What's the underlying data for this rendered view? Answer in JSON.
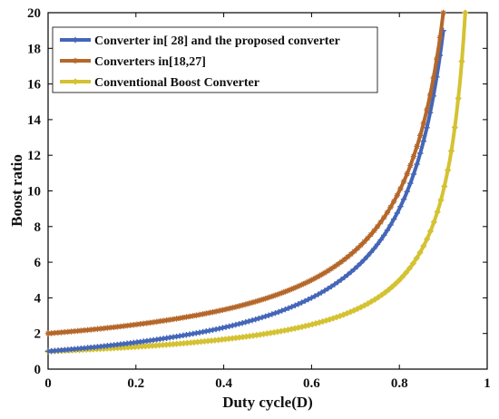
{
  "chart_data": {
    "type": "line",
    "title": "",
    "xlabel": "Duty cycle(D)",
    "ylabel": "Boost ratio",
    "xlim": [
      0,
      1
    ],
    "ylim": [
      0,
      20
    ],
    "xticks": [
      "0",
      "0.2",
      "0.4",
      "0.6",
      "0.8",
      "1"
    ],
    "yticks": [
      "0",
      "2",
      "4",
      "6",
      "8",
      "10",
      "12",
      "14",
      "16",
      "18",
      "20"
    ],
    "grid": false,
    "legend_position": "top-left",
    "series": [
      {
        "name": "Converter in[ 28] and the proposed converter",
        "color": "#4466b8",
        "marker": "plus-star",
        "x": [
          0,
          0.1,
          0.2,
          0.3,
          0.4,
          0.5,
          0.6,
          0.7,
          0.75,
          0.8,
          0.85,
          0.88,
          0.9
        ],
        "y": [
          1.0,
          1.22,
          1.5,
          1.86,
          2.33,
          3.0,
          4.0,
          5.67,
          7.0,
          9.0,
          12.33,
          15.67,
          19.0
        ]
      },
      {
        "name": "Converters in[18,27]",
        "color": "#b5672a",
        "marker": "star",
        "x": [
          0,
          0.1,
          0.2,
          0.3,
          0.4,
          0.5,
          0.6,
          0.7,
          0.75,
          0.8,
          0.85,
          0.88,
          0.9
        ],
        "y": [
          2.0,
          2.22,
          2.5,
          2.86,
          3.33,
          4.0,
          5.0,
          6.67,
          8.0,
          10.0,
          13.33,
          16.67,
          20.0
        ]
      },
      {
        "name": "Conventional Boost Converter",
        "color": "#d4c232",
        "marker": "diamond",
        "x": [
          0,
          0.1,
          0.2,
          0.3,
          0.4,
          0.5,
          0.6,
          0.7,
          0.8,
          0.85,
          0.9,
          0.93,
          0.95
        ],
        "y": [
          1.0,
          1.11,
          1.25,
          1.43,
          1.67,
          2.0,
          2.5,
          3.33,
          5.0,
          6.67,
          10.0,
          14.29,
          20.0
        ]
      }
    ]
  }
}
